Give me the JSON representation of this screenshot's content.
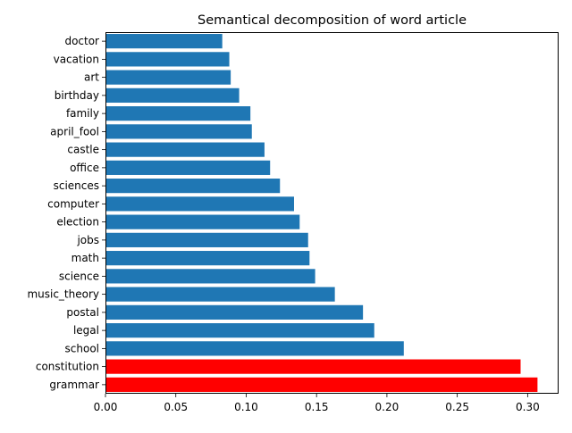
{
  "chart_data": {
    "type": "bar",
    "orientation": "horizontal",
    "title": "Semantical decomposition of word article",
    "xlabel": "",
    "ylabel": "",
    "xlim": [
      0.0,
      0.322
    ],
    "x_ticks": [
      "0.00",
      "0.05",
      "0.10",
      "0.15",
      "0.20",
      "0.25",
      "0.30"
    ],
    "x_tick_values": [
      0.0,
      0.05,
      0.1,
      0.15,
      0.2,
      0.25,
      0.3
    ],
    "grid": false,
    "default_color": "#1f77b4",
    "highlight_color": "#ff0000",
    "categories": [
      "grammar",
      "constitution",
      "school",
      "legal",
      "postal",
      "music_theory",
      "science",
      "math",
      "jobs",
      "election",
      "computer",
      "sciences",
      "office",
      "castle",
      "april_fool",
      "family",
      "birthday",
      "art",
      "vacation",
      "doctor"
    ],
    "values": [
      0.307,
      0.295,
      0.212,
      0.191,
      0.183,
      0.163,
      0.149,
      0.145,
      0.144,
      0.138,
      0.134,
      0.124,
      0.117,
      0.113,
      0.104,
      0.103,
      0.095,
      0.089,
      0.088,
      0.083
    ],
    "highlighted": [
      "grammar",
      "constitution"
    ]
  }
}
